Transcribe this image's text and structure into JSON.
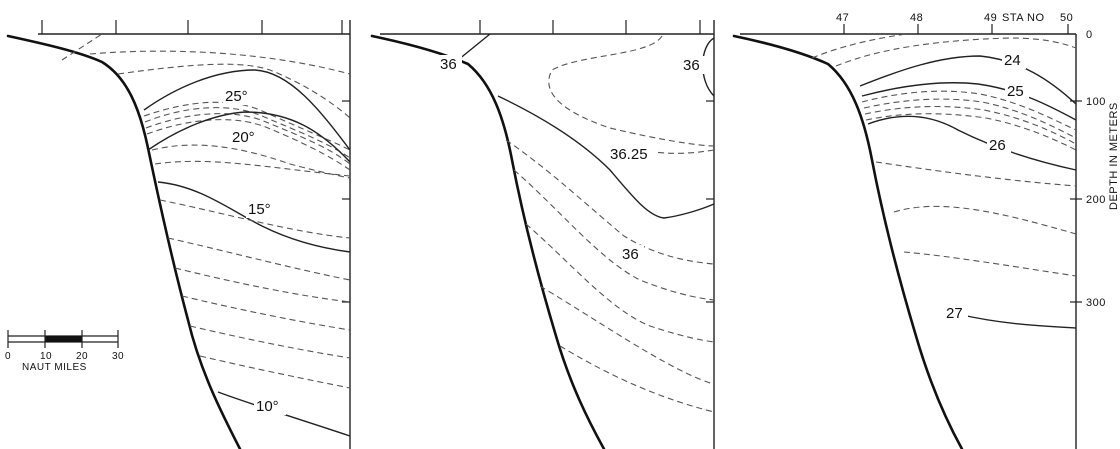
{
  "panels": [
    {
      "id": "temperature",
      "contour_labels": [
        "25°",
        "20°",
        "15°",
        "10°"
      ]
    },
    {
      "id": "salinity",
      "contour_labels": [
        "36",
        "36",
        "36.25",
        "36"
      ]
    },
    {
      "id": "density",
      "contour_labels": [
        "24",
        "25",
        "26",
        "27"
      ]
    }
  ],
  "station_axis": {
    "stations": [
      "47",
      "48",
      "49"
    ],
    "label": "STA NO",
    "last_station": "50"
  },
  "depth_axis": {
    "title": "DEPTH IN METERS",
    "ticks": [
      "0",
      "100",
      "200",
      "300"
    ]
  },
  "scale_bar": {
    "ticks": [
      "0",
      "10",
      "20",
      "30"
    ],
    "units": "NAUT MILES"
  }
}
